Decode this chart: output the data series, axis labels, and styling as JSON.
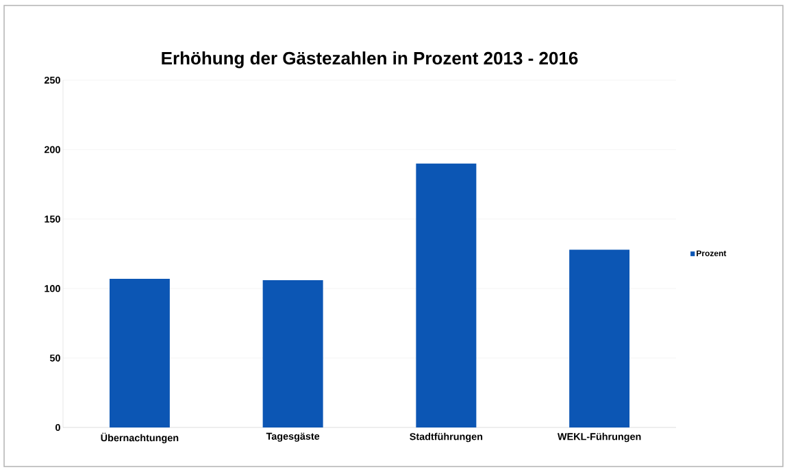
{
  "chart_data": {
    "type": "bar",
    "title": "Erhöhung der Gästezahlen in Prozent 2013 - 2016",
    "categories": [
      "Übernachtungen",
      "Tagesgäste",
      "Stadtführungen",
      "WEKL-Führungen"
    ],
    "series": [
      {
        "name": "Prozent",
        "color": "#0c56b4",
        "values": [
          107,
          106,
          190,
          128
        ]
      }
    ],
    "ylim": [
      0,
      250
    ],
    "yticks": [
      0,
      50,
      100,
      150,
      200,
      250
    ],
    "grid": "y",
    "legend": "right"
  }
}
